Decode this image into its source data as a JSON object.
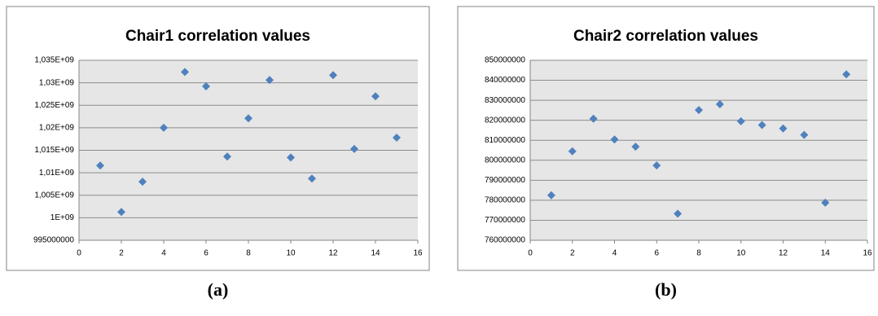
{
  "chart_data": [
    {
      "type": "scatter",
      "title": "Chair1 correlation values",
      "caption": "(a)",
      "color": "#4f81bd",
      "grid": true,
      "x": [
        1,
        2,
        3,
        4,
        5,
        6,
        7,
        8,
        9,
        10,
        11,
        12,
        13,
        14,
        15
      ],
      "values": [
        1011600000,
        1001300000,
        1008000000,
        1020000000,
        1032400000,
        1029200000,
        1013600000,
        1022100000,
        1030600000,
        1013400000,
        1008700000,
        1031700000,
        1015300000,
        1027000000,
        1017800000
      ],
      "xlim": [
        0,
        16
      ],
      "xticks": [
        0,
        2,
        4,
        6,
        8,
        10,
        12,
        14,
        16
      ],
      "ylim": [
        995000000,
        1035000000
      ],
      "yticks": [
        995000000,
        {
          "value": 1000000000,
          "label": "1E+09"
        },
        {
          "value": 1005000000,
          "label": "1,005E+09"
        },
        {
          "value": 1010000000,
          "label": "1,01E+09"
        },
        {
          "value": 1015000000,
          "label": "1,015E+09"
        },
        {
          "value": 1020000000,
          "label": "1,02E+09"
        },
        {
          "value": 1025000000,
          "label": "1,025E+09"
        },
        {
          "value": 1030000000,
          "label": "1,03E+09"
        },
        {
          "value": 1035000000,
          "label": "1,035E+09"
        }
      ]
    },
    {
      "type": "scatter",
      "title": "Chair2 correlation values",
      "caption": "(b)",
      "color": "#4f81bd",
      "grid": true,
      "x": [
        1,
        2,
        3,
        4,
        5,
        6,
        7,
        8,
        9,
        10,
        11,
        12,
        13,
        14,
        15
      ],
      "values": [
        782500000,
        804500000,
        820800000,
        810400000,
        806800000,
        797400000,
        773300000,
        825100000,
        828000000,
        819500000,
        817600000,
        815900000,
        812700000,
        778800000,
        843000000
      ],
      "xlim": [
        0,
        16
      ],
      "xticks": [
        0,
        2,
        4,
        6,
        8,
        10,
        12,
        14,
        16
      ],
      "ylim": [
        760000000,
        850000000
      ],
      "yticks": [
        760000000,
        770000000,
        780000000,
        790000000,
        800000000,
        810000000,
        820000000,
        830000000,
        840000000,
        850000000
      ]
    }
  ]
}
